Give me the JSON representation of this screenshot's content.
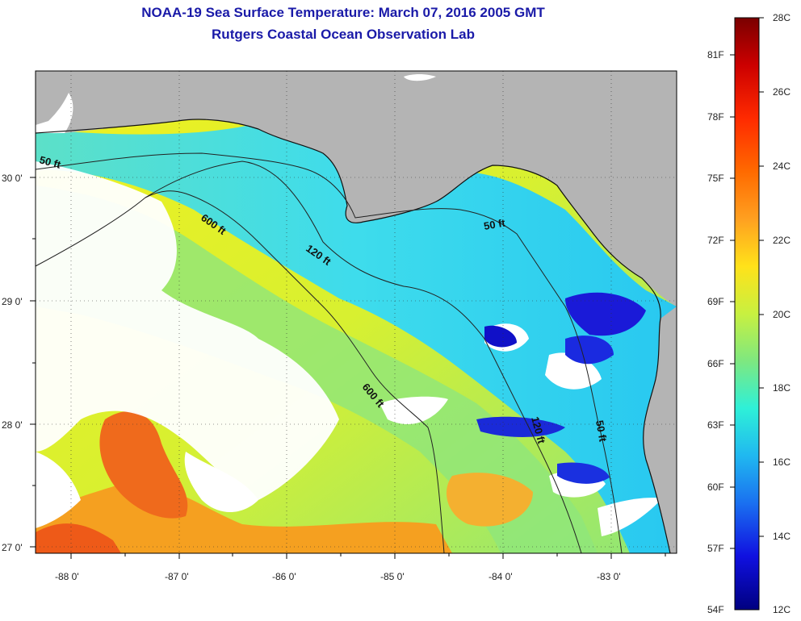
{
  "title": {
    "line1": "NOAA-19 Sea Surface Temperature:  March 07, 2016 2005 GMT",
    "line2": "Rutgers Coastal Ocean Observation Lab"
  },
  "axes": {
    "longitude_labels": [
      "-88 0'",
      "-87 0'",
      "-86 0'",
      "-85 0'",
      "-84 0'",
      "-83 0'"
    ],
    "latitude_labels": [
      "30 0'",
      "29 0'",
      "28 0'",
      "27 0'"
    ]
  },
  "depth_contours": [
    "50 ft",
    "600 ft",
    "120 ft",
    "50 ft",
    "600 ft",
    "120 ft",
    "50 ft"
  ],
  "colorbar": {
    "fahrenheit_labels": [
      "81F",
      "78F",
      "75F",
      "72F",
      "69F",
      "66F",
      "63F",
      "60F",
      "57F",
      "54F"
    ],
    "celsius_labels": [
      "28C",
      "26C",
      "24C",
      "22C",
      "20C",
      "18C",
      "16C",
      "14C",
      "12C"
    ],
    "stops": [
      "#7a0000",
      "#cc0000",
      "#ff2a00",
      "#ff6a00",
      "#ffa020",
      "#ffe21a",
      "#c8f040",
      "#7ee880",
      "#2ef0d8",
      "#20b8f0",
      "#1a70f0",
      "#1010e0",
      "#000080"
    ]
  },
  "colors": {
    "land": "#b4b4b4",
    "cloud": "#ffffff",
    "warm_water": "#ffd84a",
    "mid_water": "#96e874",
    "cool_water": "#36e2f2",
    "cold_water": "#1a1ae0",
    "hot_water": "#f26a1a"
  }
}
